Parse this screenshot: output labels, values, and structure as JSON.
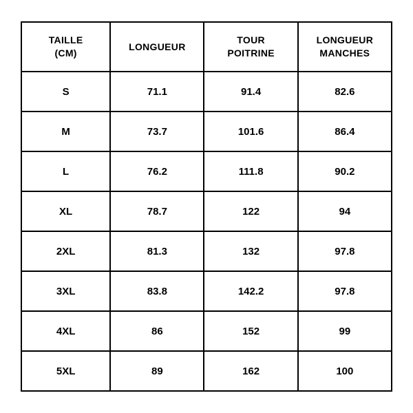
{
  "table": {
    "type": "table",
    "background_color": "#ffffff",
    "border_color": "#000000",
    "border_width": 2,
    "header_fontsize": 14,
    "cell_fontsize": 15,
    "header_fontweight": 900,
    "cell_fontweight": 700,
    "columns": [
      "TAILLE (CM)",
      "LONGUEUR",
      "TOUR POITRINE",
      "LONGUEUR MANCHES"
    ],
    "column_widths_pct": [
      24,
      25.3,
      25.3,
      25.3
    ],
    "header_two_line": {
      "0": [
        "TAILLE",
        "(CM)"
      ],
      "2": [
        "TOUR",
        "POITRINE"
      ],
      "3": [
        "LONGUEUR",
        "MANCHES"
      ]
    },
    "rows": [
      {
        "size": "S",
        "longueur": "71.1",
        "tour_poitrine": "91.4",
        "longueur_manches": "82.6"
      },
      {
        "size": "M",
        "longueur": "73.7",
        "tour_poitrine": "101.6",
        "longueur_manches": "86.4"
      },
      {
        "size": "L",
        "longueur": "76.2",
        "tour_poitrine": "111.8",
        "longueur_manches": "90.2"
      },
      {
        "size": "XL",
        "longueur": "78.7",
        "tour_poitrine": "122",
        "longueur_manches": "94"
      },
      {
        "size": "2XL",
        "longueur": "81.3",
        "tour_poitrine": "132",
        "longueur_manches": "97.8"
      },
      {
        "size": "3XL",
        "longueur": "83.8",
        "tour_poitrine": "142.2",
        "longueur_manches": "97.8"
      },
      {
        "size": "4XL",
        "longueur": "86",
        "tour_poitrine": "152",
        "longueur_manches": "99"
      },
      {
        "size": "5XL",
        "longueur": "89",
        "tour_poitrine": "162",
        "longueur_manches": "100"
      }
    ]
  }
}
